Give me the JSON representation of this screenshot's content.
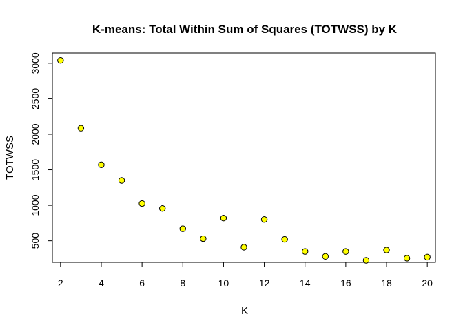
{
  "chart_data": {
    "type": "scatter",
    "title": "K-means: Total Within Sum of Squares (TOTWSS) by K",
    "xlabel": "K",
    "ylabel": "TOTWSS",
    "xlim": [
      1.6,
      20.4
    ],
    "ylim": [
      196,
      3144
    ],
    "x_ticks": [
      2,
      4,
      6,
      8,
      10,
      12,
      14,
      16,
      18,
      20
    ],
    "y_ticks": [
      500,
      1000,
      1500,
      2000,
      2500,
      3000
    ],
    "grid": false,
    "point_fill": "#ffff00",
    "point_stroke": "#000000",
    "x": [
      2,
      3,
      4,
      5,
      6,
      7,
      8,
      9,
      10,
      11,
      12,
      13,
      14,
      15,
      16,
      17,
      18,
      19,
      20
    ],
    "y": [
      3040,
      2085,
      1570,
      1350,
      1025,
      955,
      670,
      530,
      820,
      410,
      800,
      520,
      350,
      280,
      350,
      225,
      370,
      255,
      270
    ]
  }
}
